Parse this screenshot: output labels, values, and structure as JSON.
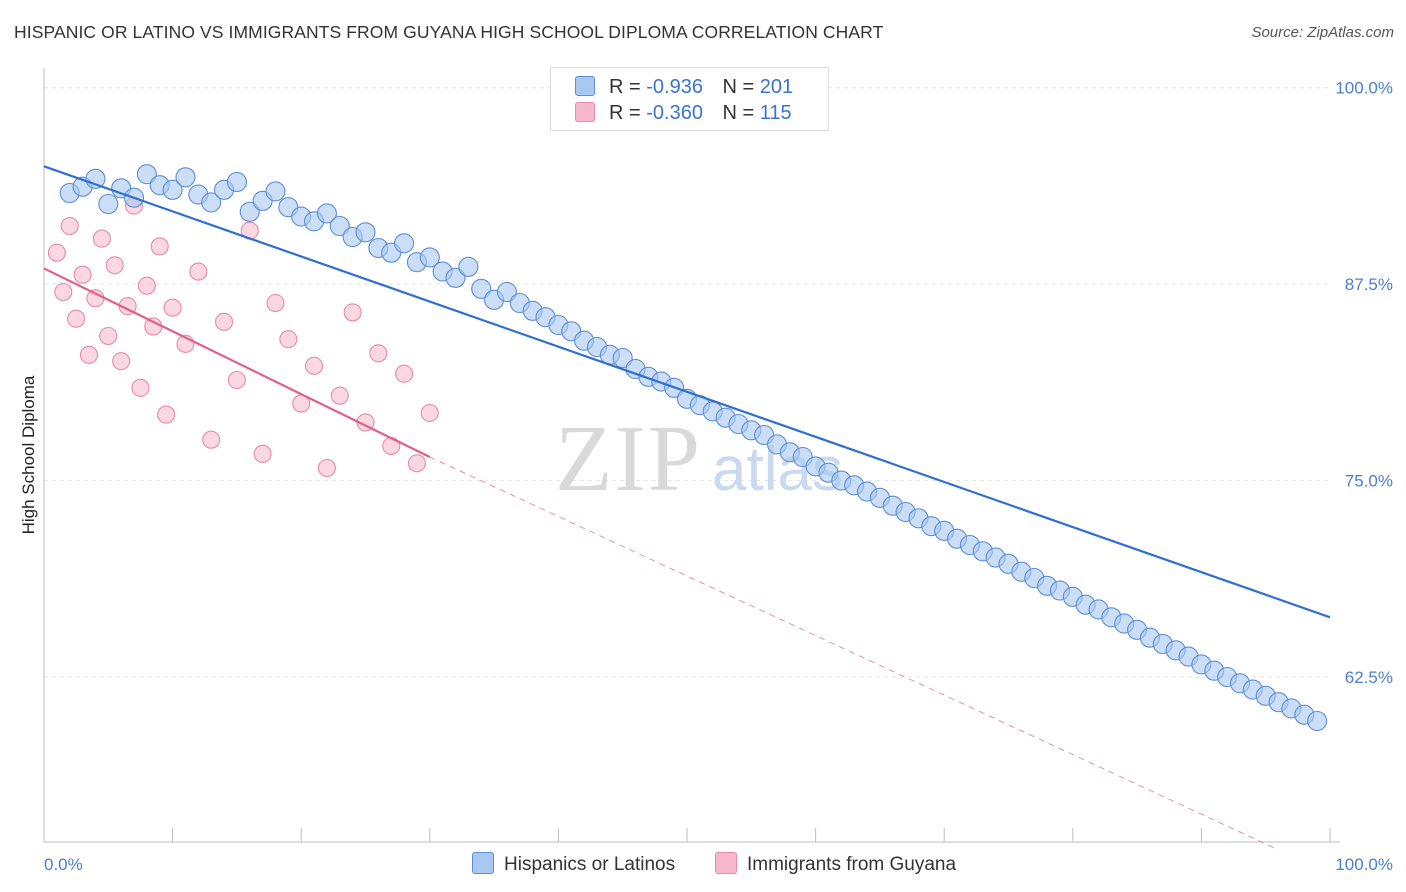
{
  "title": "HISPANIC OR LATINO VS IMMIGRANTS FROM GUYANA HIGH SCHOOL DIPLOMA CORRELATION CHART",
  "source": "Source: ZipAtlas.com",
  "watermark": {
    "zip": "ZIP",
    "atlas": "atlas"
  },
  "legend": {
    "rows": [
      {
        "r_label": "R =",
        "r_value": "-0.936",
        "n_label": "N =",
        "n_value": "201"
      },
      {
        "r_label": "R =",
        "r_value": "-0.360",
        "n_label": "N =",
        "n_value": "115"
      }
    ]
  },
  "bottom_legend": {
    "series1": "Hispanics or Latinos",
    "series2": "Immigrants from Guyana"
  },
  "colors": {
    "blue_fill": "#a9c8f0",
    "blue_stroke": "#5b8fd6",
    "blue_line": "#2f6fd0",
    "pink_fill": "#f5b7c9",
    "pink_stroke": "#e88aa8",
    "pink_line": "#e0608a",
    "tick_text": "#4a7fd0"
  },
  "chart_data": {
    "type": "scatter",
    "title": "HISPANIC OR LATINO VS IMMIGRANTS FROM GUYANA HIGH SCHOOL DIPLOMA CORRELATION CHART",
    "xlabel": "",
    "ylabel": "High School Diploma",
    "x_tick_labels": [
      "0.0%",
      "100.0%"
    ],
    "y_tick_labels": [
      "100.0%",
      "87.5%",
      "75.0%",
      "62.5%"
    ],
    "y_ticks": [
      100.0,
      87.5,
      75.0,
      62.5
    ],
    "xlim": [
      0,
      100
    ],
    "ylim": [
      52,
      101
    ],
    "grid": true,
    "legend_position": "top-center",
    "series": [
      {
        "name": "Hispanics or Latinos",
        "R": -0.936,
        "N": 201,
        "trend": {
          "x": [
            0,
            100
          ],
          "y": [
            95.0,
            66.3
          ]
        },
        "points": [
          [
            2,
            93.3
          ],
          [
            3,
            93.7
          ],
          [
            4,
            94.2
          ],
          [
            5,
            92.6
          ],
          [
            6,
            93.6
          ],
          [
            7,
            93.0
          ],
          [
            8,
            94.5
          ],
          [
            9,
            93.8
          ],
          [
            10,
            93.5
          ],
          [
            11,
            94.3
          ],
          [
            12,
            93.2
          ],
          [
            13,
            92.7
          ],
          [
            14,
            93.5
          ],
          [
            15,
            94.0
          ],
          [
            16,
            92.1
          ],
          [
            17,
            92.8
          ],
          [
            18,
            93.4
          ],
          [
            19,
            92.4
          ],
          [
            20,
            91.8
          ],
          [
            21,
            91.5
          ],
          [
            22,
            92.0
          ],
          [
            23,
            91.2
          ],
          [
            24,
            90.5
          ],
          [
            25,
            90.8
          ],
          [
            26,
            89.8
          ],
          [
            27,
            89.5
          ],
          [
            28,
            90.1
          ],
          [
            29,
            88.9
          ],
          [
            30,
            89.2
          ],
          [
            31,
            88.3
          ],
          [
            32,
            87.9
          ],
          [
            33,
            88.6
          ],
          [
            34,
            87.2
          ],
          [
            35,
            86.5
          ],
          [
            36,
            87.0
          ],
          [
            37,
            86.3
          ],
          [
            38,
            85.8
          ],
          [
            39,
            85.4
          ],
          [
            40,
            84.9
          ],
          [
            41,
            84.5
          ],
          [
            42,
            83.9
          ],
          [
            43,
            83.5
          ],
          [
            44,
            83.0
          ],
          [
            45,
            82.8
          ],
          [
            46,
            82.1
          ],
          [
            47,
            81.6
          ],
          [
            48,
            81.3
          ],
          [
            49,
            80.9
          ],
          [
            50,
            80.2
          ],
          [
            51,
            79.8
          ],
          [
            52,
            79.4
          ],
          [
            53,
            79.0
          ],
          [
            54,
            78.6
          ],
          [
            55,
            78.2
          ],
          [
            56,
            77.9
          ],
          [
            57,
            77.3
          ],
          [
            58,
            76.8
          ],
          [
            59,
            76.5
          ],
          [
            60,
            75.9
          ],
          [
            61,
            75.5
          ],
          [
            62,
            75.0
          ],
          [
            63,
            74.7
          ],
          [
            64,
            74.3
          ],
          [
            65,
            73.9
          ],
          [
            66,
            73.4
          ],
          [
            67,
            73.0
          ],
          [
            68,
            72.6
          ],
          [
            69,
            72.1
          ],
          [
            70,
            71.8
          ],
          [
            71,
            71.3
          ],
          [
            72,
            70.9
          ],
          [
            73,
            70.5
          ],
          [
            74,
            70.1
          ],
          [
            75,
            69.7
          ],
          [
            76,
            69.2
          ],
          [
            77,
            68.8
          ],
          [
            78,
            68.3
          ],
          [
            79,
            68.0
          ],
          [
            80,
            67.6
          ],
          [
            81,
            67.1
          ],
          [
            82,
            66.8
          ],
          [
            83,
            66.3
          ],
          [
            84,
            65.9
          ],
          [
            85,
            65.5
          ],
          [
            86,
            65.0
          ],
          [
            87,
            64.6
          ],
          [
            88,
            64.2
          ],
          [
            89,
            63.8
          ],
          [
            90,
            63.3
          ],
          [
            91,
            62.9
          ],
          [
            92,
            62.5
          ],
          [
            93,
            62.1
          ],
          [
            94,
            61.7
          ],
          [
            95,
            61.3
          ],
          [
            96,
            60.9
          ],
          [
            97,
            60.5
          ],
          [
            98,
            60.1
          ],
          [
            99,
            59.7
          ]
        ]
      },
      {
        "name": "Immigrants from Guyana",
        "R": -0.36,
        "N": 115,
        "trend": {
          "x": [
            0,
            30
          ],
          "y": [
            88.5,
            76.5
          ]
        },
        "trend_extension": {
          "x": [
            30,
            96
          ],
          "y": [
            76.5,
            51.5
          ]
        },
        "points": [
          [
            1,
            89.5
          ],
          [
            1.5,
            87.0
          ],
          [
            2,
            91.2
          ],
          [
            2.5,
            85.3
          ],
          [
            3,
            88.1
          ],
          [
            3.5,
            83.0
          ],
          [
            4,
            86.6
          ],
          [
            4.5,
            90.4
          ],
          [
            5,
            84.2
          ],
          [
            5.5,
            88.7
          ],
          [
            6,
            82.6
          ],
          [
            6.5,
            86.1
          ],
          [
            7,
            92.5
          ],
          [
            7.5,
            80.9
          ],
          [
            8,
            87.4
          ],
          [
            8.5,
            84.8
          ],
          [
            9,
            89.9
          ],
          [
            9.5,
            79.2
          ],
          [
            10,
            86.0
          ],
          [
            11,
            83.7
          ],
          [
            12,
            88.3
          ],
          [
            13,
            77.6
          ],
          [
            14,
            85.1
          ],
          [
            15,
            81.4
          ],
          [
            16,
            90.9
          ],
          [
            17,
            76.7
          ],
          [
            18,
            86.3
          ],
          [
            19,
            84.0
          ],
          [
            20,
            79.9
          ],
          [
            21,
            82.3
          ],
          [
            22,
            75.8
          ],
          [
            23,
            80.4
          ],
          [
            24,
            85.7
          ],
          [
            25,
            78.7
          ],
          [
            26,
            83.1
          ],
          [
            27,
            77.2
          ],
          [
            28,
            81.8
          ],
          [
            29,
            76.1
          ],
          [
            30,
            79.3
          ]
        ]
      }
    ]
  }
}
